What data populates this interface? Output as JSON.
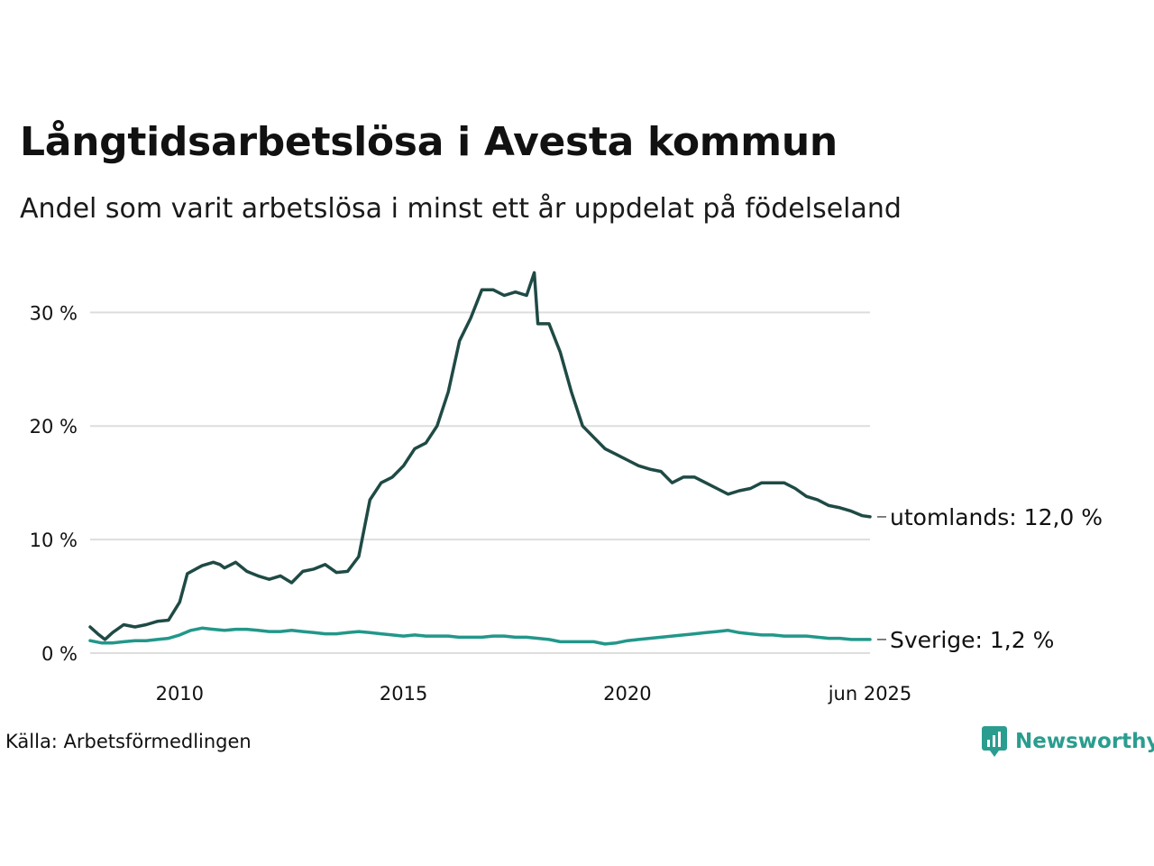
{
  "title": "Långtidsarbetslösa i Avesta kommun",
  "subtitle": "Andel som varit arbetslösa i minst ett år uppdelat på födelseland",
  "source": "Källa: Arbetsförmedlingen",
  "brand": "Newsworthy",
  "colors": {
    "accent": "#2a9d8f",
    "utomlands": "#1f4a45",
    "sverige": "#22978a",
    "grid": "#dddddd"
  },
  "chart_data": {
    "type": "line",
    "xlim": [
      2008.0,
      2025.42
    ],
    "ylim": [
      0,
      34
    ],
    "y_ticks": [
      0,
      10,
      20,
      30
    ],
    "y_tick_labels": [
      "0 %",
      "10 %",
      "20 %",
      "30 %"
    ],
    "x_ticks": [
      2010,
      2015,
      2020,
      2025.42
    ],
    "x_tick_labels": [
      "2010",
      "2015",
      "2020",
      "jun 2025"
    ],
    "grid": "horizontal",
    "series": [
      {
        "key": "utomlands",
        "end_label": "utomlands: 12,0 %",
        "x": [
          2008.0,
          2008.17,
          2008.33,
          2008.5,
          2008.75,
          2009.0,
          2009.25,
          2009.5,
          2009.75,
          2010.0,
          2010.17,
          2010.5,
          2010.75,
          2010.9,
          2011.0,
          2011.25,
          2011.5,
          2011.75,
          2012.0,
          2012.25,
          2012.5,
          2012.75,
          2013.0,
          2013.25,
          2013.5,
          2013.75,
          2014.0,
          2014.25,
          2014.5,
          2014.75,
          2015.0,
          2015.25,
          2015.5,
          2015.75,
          2016.0,
          2016.25,
          2016.5,
          2016.75,
          2017.0,
          2017.25,
          2017.5,
          2017.75,
          2017.92,
          2018.0,
          2018.25,
          2018.5,
          2018.75,
          2019.0,
          2019.25,
          2019.5,
          2019.75,
          2020.0,
          2020.25,
          2020.5,
          2020.75,
          2021.0,
          2021.25,
          2021.5,
          2021.75,
          2022.0,
          2022.25,
          2022.5,
          2022.75,
          2023.0,
          2023.25,
          2023.5,
          2023.75,
          2024.0,
          2024.25,
          2024.5,
          2024.75,
          2025.0,
          2025.25,
          2025.42
        ],
        "y": [
          2.3,
          1.7,
          1.2,
          1.8,
          2.5,
          2.3,
          2.5,
          2.8,
          2.9,
          4.5,
          7.0,
          7.7,
          8.0,
          7.8,
          7.5,
          8.0,
          7.2,
          6.8,
          6.5,
          6.8,
          6.2,
          7.2,
          7.4,
          7.8,
          7.1,
          7.2,
          8.5,
          13.5,
          15.0,
          15.5,
          16.5,
          18.0,
          18.5,
          20.0,
          23.0,
          27.5,
          29.5,
          32.0,
          32.0,
          31.5,
          31.8,
          31.5,
          33.5,
          29.0,
          29.0,
          26.5,
          23.0,
          20.0,
          19.0,
          18.0,
          17.5,
          17.0,
          16.5,
          16.2,
          16.0,
          15.0,
          15.5,
          15.5,
          15.0,
          14.5,
          14.0,
          14.3,
          14.5,
          15.0,
          15.0,
          15.0,
          14.5,
          13.8,
          13.5,
          13.0,
          12.8,
          12.5,
          12.1,
          12.0
        ]
      },
      {
        "key": "sverige",
        "end_label": "Sverige:  1,2 %",
        "x": [
          2008.0,
          2008.25,
          2008.5,
          2008.75,
          2009.0,
          2009.25,
          2009.5,
          2009.75,
          2010.0,
          2010.25,
          2010.5,
          2010.75,
          2011.0,
          2011.25,
          2011.5,
          2011.75,
          2012.0,
          2012.25,
          2012.5,
          2012.75,
          2013.0,
          2013.25,
          2013.5,
          2013.75,
          2014.0,
          2014.25,
          2014.5,
          2014.75,
          2015.0,
          2015.25,
          2015.5,
          2015.75,
          2016.0,
          2016.25,
          2016.5,
          2016.75,
          2017.0,
          2017.25,
          2017.5,
          2017.75,
          2018.0,
          2018.25,
          2018.5,
          2018.75,
          2019.0,
          2019.25,
          2019.5,
          2019.75,
          2020.0,
          2020.25,
          2020.5,
          2020.75,
          2021.0,
          2021.25,
          2021.5,
          2021.75,
          2022.0,
          2022.25,
          2022.5,
          2022.75,
          2023.0,
          2023.25,
          2023.5,
          2023.75,
          2024.0,
          2024.25,
          2024.5,
          2024.75,
          2025.0,
          2025.25,
          2025.42
        ],
        "y": [
          1.1,
          0.9,
          0.9,
          1.0,
          1.1,
          1.1,
          1.2,
          1.3,
          1.6,
          2.0,
          2.2,
          2.1,
          2.0,
          2.1,
          2.1,
          2.0,
          1.9,
          1.9,
          2.0,
          1.9,
          1.8,
          1.7,
          1.7,
          1.8,
          1.9,
          1.8,
          1.7,
          1.6,
          1.5,
          1.6,
          1.5,
          1.5,
          1.5,
          1.4,
          1.4,
          1.4,
          1.5,
          1.5,
          1.4,
          1.4,
          1.3,
          1.2,
          1.0,
          1.0,
          1.0,
          1.0,
          0.8,
          0.9,
          1.1,
          1.2,
          1.3,
          1.4,
          1.5,
          1.6,
          1.7,
          1.8,
          1.9,
          2.0,
          1.8,
          1.7,
          1.6,
          1.6,
          1.5,
          1.5,
          1.5,
          1.4,
          1.3,
          1.3,
          1.2,
          1.2,
          1.2
        ]
      }
    ]
  }
}
